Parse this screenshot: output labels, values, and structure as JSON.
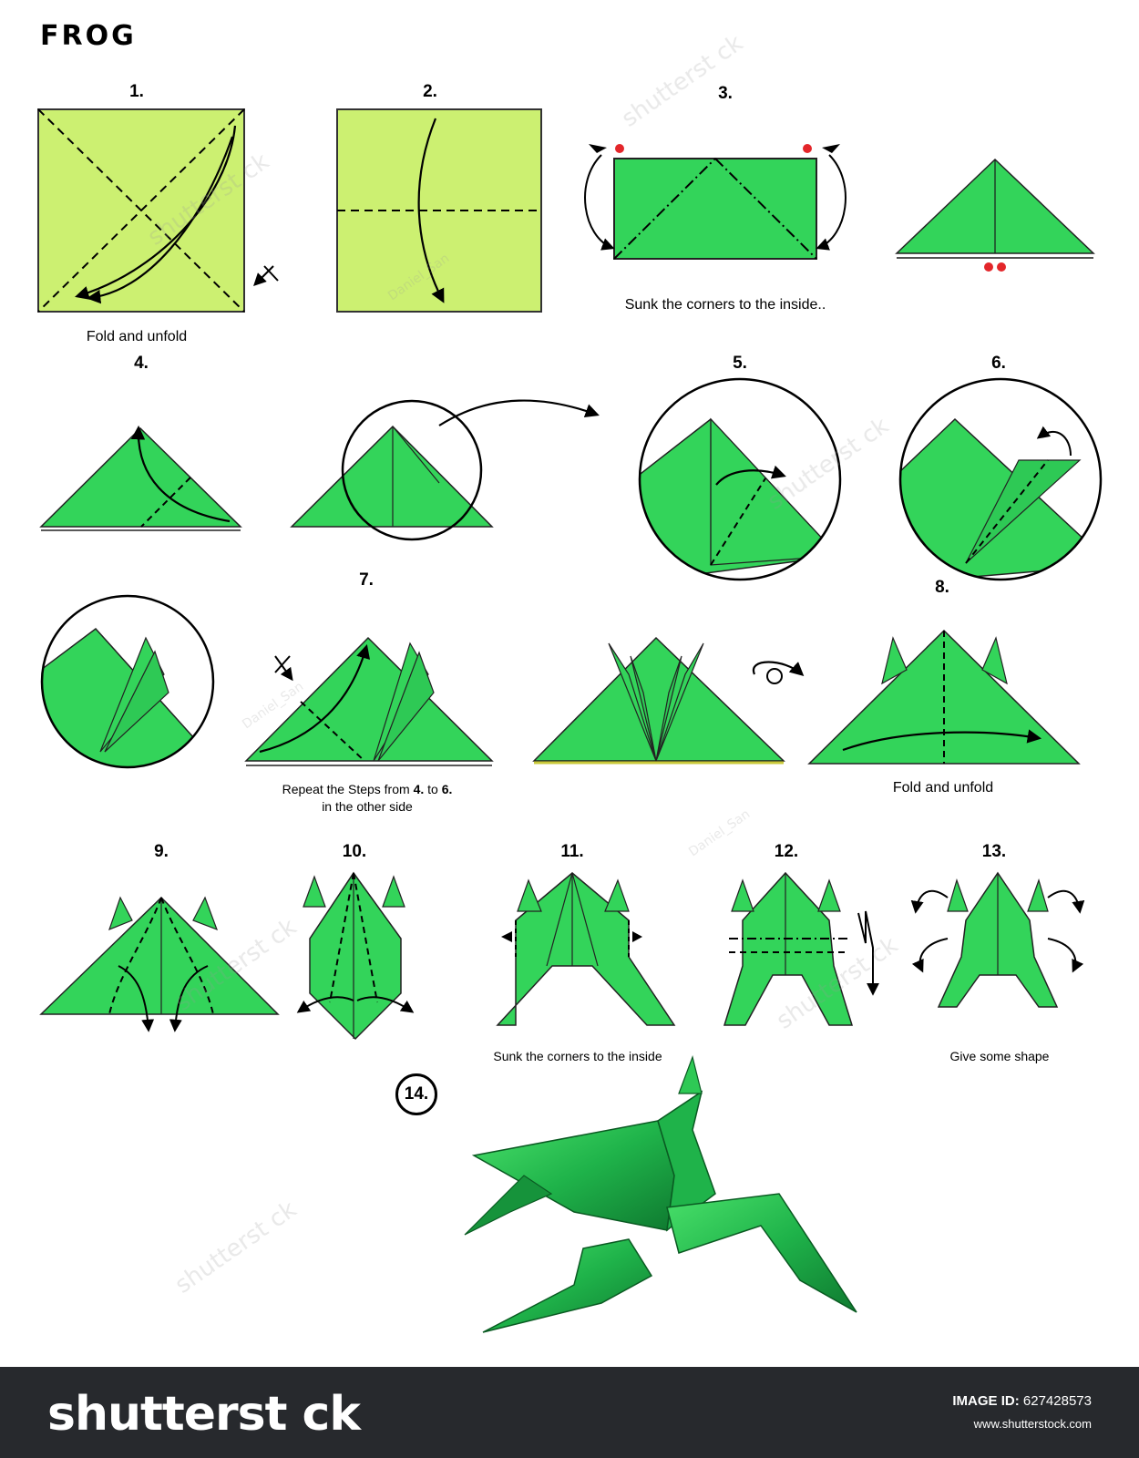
{
  "title": "FROG",
  "steps": {
    "s1": "1.",
    "s2": "2.",
    "s3": "3.",
    "s4": "4.",
    "s5": "5.",
    "s6": "6.",
    "s7": "7.",
    "s8": "8.",
    "s9": "9.",
    "s10": "10.",
    "s11": "11.",
    "s12": "12.",
    "s13": "13.",
    "s14": "14."
  },
  "captions": {
    "c1": "Fold and unfold",
    "c3": "Sunk the corners to the inside..",
    "c7_a": "Repeat the Steps from ",
    "c7_b": "4.",
    "c7_c": " to ",
    "c7_d": "6.",
    "c7_e": "in the other side",
    "c8": "Fold and unfold",
    "c11": "Sunk the corners to the inside",
    "c13": "Give some shape"
  },
  "watermarks": [
    "shutterst ck",
    "Daniel_San"
  ],
  "footer": {
    "logo": "shutterst ck",
    "image_id_label": "IMAGE ID:",
    "image_id": "627428573",
    "site": "www.shutterstock.com"
  },
  "colors": {
    "paper_light": "#ccf071",
    "paper_green": "#33d45a",
    "paper_dark": "#1ea545",
    "marker_red": "#e3262a",
    "footer_bg": "#27292d"
  }
}
